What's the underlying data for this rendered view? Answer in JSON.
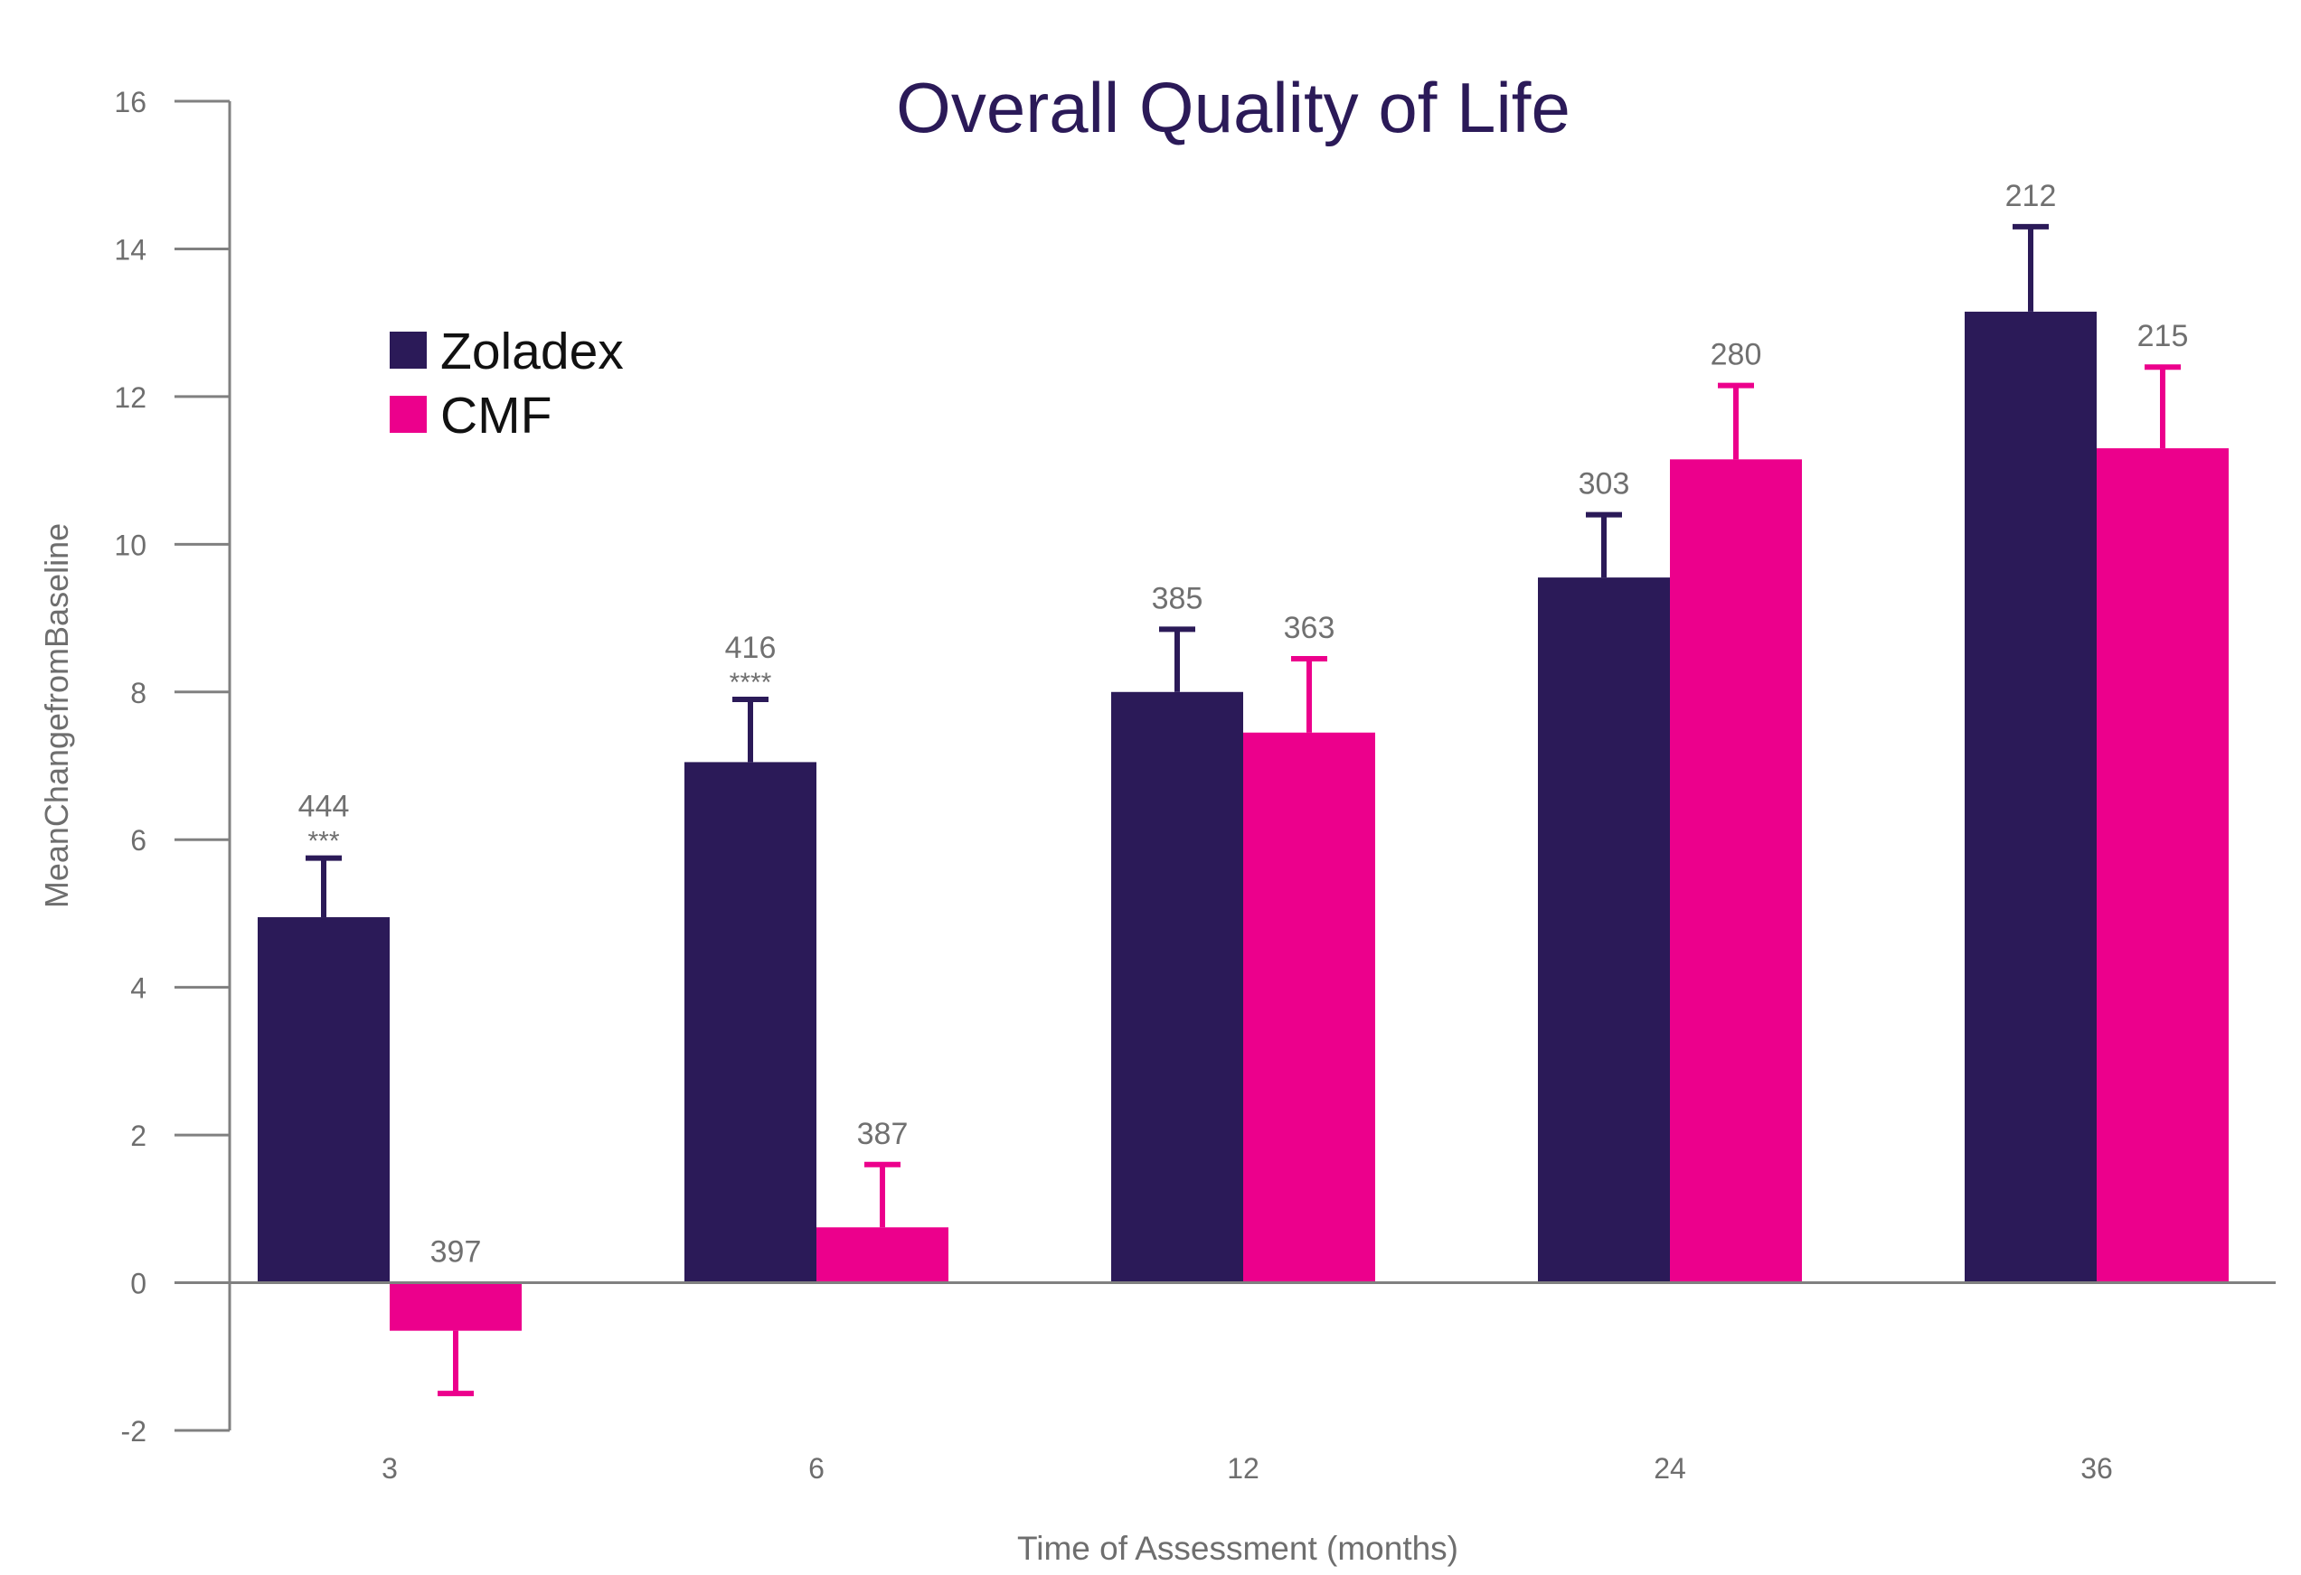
{
  "chart_data": {
    "type": "bar",
    "title": "Overall Quality of Life",
    "title_color": "#2b1a58",
    "xlabel": "Time of Assessment (months)",
    "ylabel": "MeanChangefromBaseline",
    "categories": [
      "3",
      "6",
      "12",
      "24",
      "36"
    ],
    "ylim": [
      -2,
      16
    ],
    "yticks": [
      -2,
      0,
      2,
      4,
      6,
      8,
      10,
      12,
      14,
      16
    ],
    "grid": false,
    "legend": "upper-left",
    "series": [
      {
        "name": "Zoladex",
        "color": "#2b1a58",
        "values": [
          4.95,
          7.05,
          8.0,
          9.55,
          13.15
        ],
        "errors": [
          0.8,
          0.85,
          0.85,
          0.85,
          1.15
        ],
        "n": [
          444,
          416,
          385,
          303,
          212
        ],
        "significance": [
          "***",
          "****",
          "",
          "",
          ""
        ]
      },
      {
        "name": "CMF",
        "color": "#ec008c",
        "values": [
          -0.65,
          0.75,
          7.45,
          11.15,
          11.3
        ],
        "errors": [
          0.85,
          0.85,
          1.0,
          1.0,
          1.1
        ],
        "n": [
          397,
          387,
          363,
          280,
          215
        ]
      }
    ]
  }
}
